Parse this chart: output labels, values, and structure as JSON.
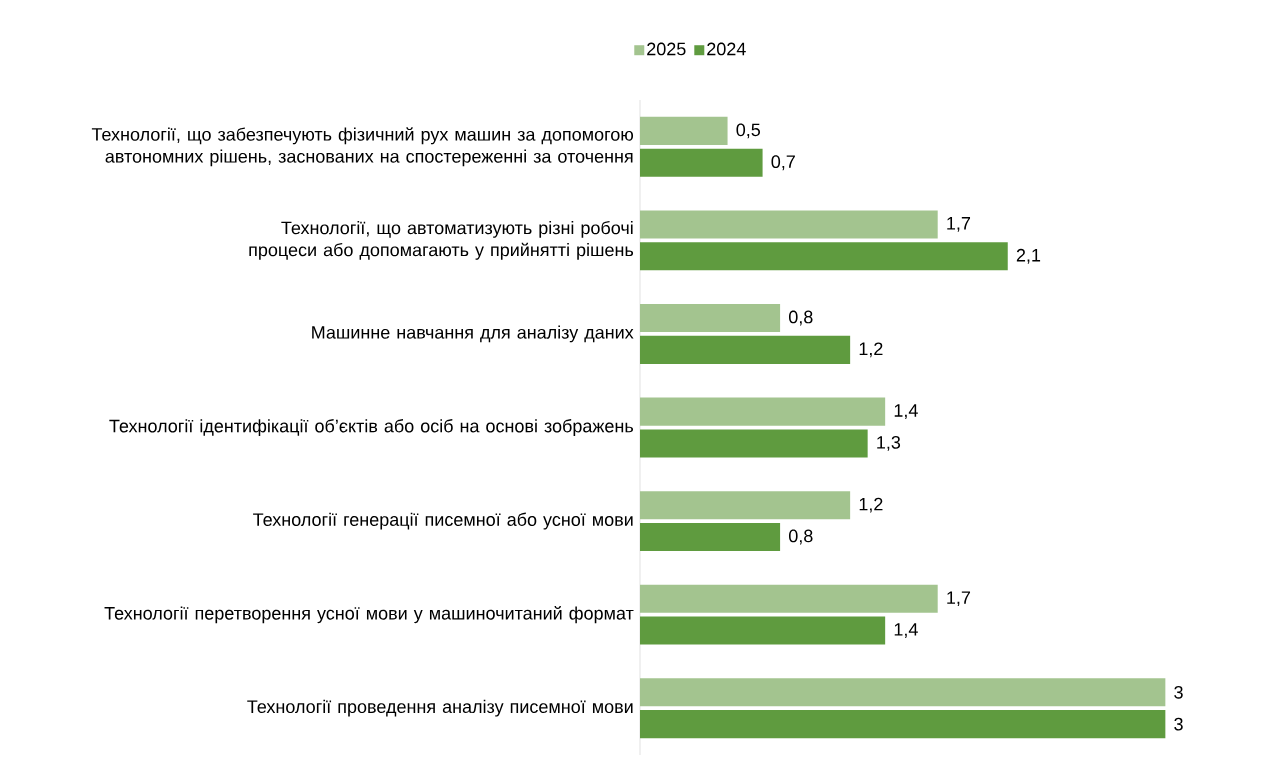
{
  "chart_data": {
    "type": "bar",
    "orientation": "horizontal",
    "categories": [
      "Технології, що забезпечують фізичний рух машин за допомогою автономних рішень, заснованих на спостереженні за оточення",
      "Технології, що автоматизують різні робочі процеси або допомагають у прийнятті рішень",
      "Машинне навчання для аналізу даних",
      "Технології ідентифікації об’єктів або осіб на основі зображень",
      "Технології генерації писемної або усної мови",
      "Технології перетворення усної мови у машиночитаний формат",
      "Технології проведення аналізу писемної мови"
    ],
    "series": [
      {
        "name": "2025",
        "color": "#a3c48f",
        "values": [
          0.5,
          1.7,
          0.8,
          1.4,
          1.2,
          1.7,
          3
        ],
        "value_labels": [
          "0,5",
          "1,7",
          "0,8",
          "1,4",
          "1,2",
          "1,7",
          "3"
        ]
      },
      {
        "name": "2024",
        "color": "#5f9b3f",
        "values": [
          0.7,
          2.1,
          1.2,
          1.3,
          0.8,
          1.4,
          3
        ],
        "value_labels": [
          "0,7",
          "2,1",
          "1,2",
          "1,3",
          "0,8",
          "1,4",
          "3"
        ]
      }
    ],
    "legend": "top",
    "tick_labels": "y"
  }
}
